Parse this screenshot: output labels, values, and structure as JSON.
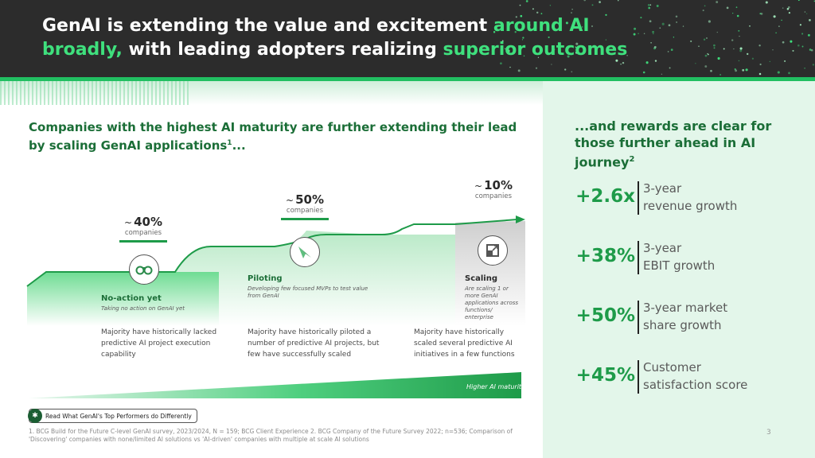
{
  "header": {
    "line1_plain": "GenAI is extending the value and excitement ",
    "line1_highlight": "around AI",
    "line2_highlight_a": "broadly,",
    "line2_plain": " with leading adopters realizing ",
    "line2_highlight_b": "superior outcomes"
  },
  "left": {
    "heading_text": "Companies with the highest AI maturity are further extending their lead by scaling GenAI applications",
    "heading_sup": "1",
    "heading_tail": "...",
    "stages": [
      {
        "pct": "40%",
        "tilde": "~",
        "sub": "companies",
        "name": "No-action yet",
        "desc": "Taking no action on GenAI yet",
        "note": "Majority have historically lacked predictive AI project execution capability",
        "icon": "binoculars-icon"
      },
      {
        "pct": "50%",
        "tilde": "~",
        "sub": "companies",
        "name": "Piloting",
        "desc": "Developing few focused MVPs to test value from GenAI",
        "note": "Majority have historically piloted a number of predictive AI projects, but few have successfully scaled",
        "icon": "paper-plane-icon"
      },
      {
        "pct": "10%",
        "tilde": "~",
        "sub": "companies",
        "name": "Scaling",
        "desc": "Are scaling 1 or more GenAI applications across functions/ enterprise",
        "note": "Majority have historically scaled several predictive AI initiatives in a few functions",
        "icon": "scale-up-icon"
      }
    ],
    "maturity_label": "Higher AI maturity",
    "cta": "Read What GenAI's Top Performers do Differently",
    "footnote": "1. BCG Build for the Future C-level GenAI survey, 2023/2024, N = 159; BCG Client Experience 2. BCG Company of the Future Survey 2022; n=536; Comparison of 'Discovering' companies with none/limited AI solutions vs 'AI-driven' companies with multiple at scale AI solutions"
  },
  "right": {
    "heading_text": "...and rewards are clear for those further ahead in AI journey",
    "heading_sup": "2",
    "metrics": [
      {
        "value": "+2.6x",
        "label_1": "3-year",
        "label_2": "revenue growth"
      },
      {
        "value": "+38%",
        "label_1": "3-year",
        "label_2": "EBIT growth"
      },
      {
        "value": "+50%",
        "label_1": "3-year market",
        "label_2": "share growth"
      },
      {
        "value": "+45%",
        "label_1": "Customer",
        "label_2": "satisfaction score"
      }
    ],
    "page_number": "3"
  },
  "colors": {
    "brand_green": "#1e9b49",
    "light_green": "#3fe07d",
    "dark_header": "#2c2c2c",
    "panel_bg": "#e3f6ea"
  }
}
